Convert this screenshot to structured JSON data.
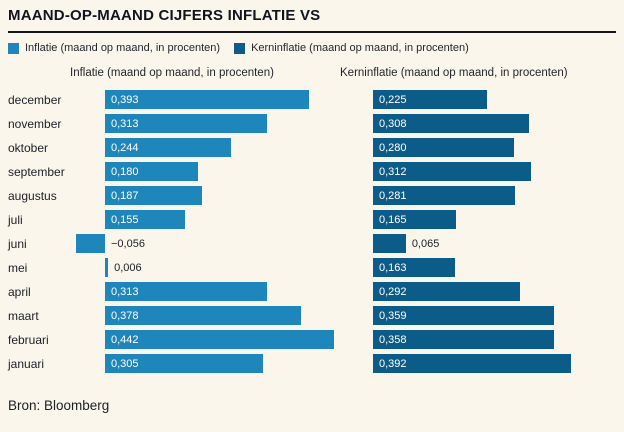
{
  "title": "MAAND-OP-MAAND CIJFERS INFLATIE VS",
  "source": "Bron: Bloomberg",
  "legend": [
    {
      "label": "Inflatie (maand op maand, in procenten)",
      "color": "#1e86ba"
    },
    {
      "label": "Kerninflatie (maand op maand, in procenten)",
      "color": "#0b5c89"
    }
  ],
  "chart_data": {
    "type": "bar",
    "orientation": "horizontal",
    "title": "MAAND-OP-MAAND CIJFERS INFLATIE VS",
    "column_headers": [
      "Inflatie (maand op maand, in procenten)",
      "Kerninflatie (maand op maand, in procenten)"
    ],
    "categories": [
      "december",
      "november",
      "oktober",
      "september",
      "augustus",
      "juli",
      "juni",
      "mei",
      "april",
      "maart",
      "februari",
      "januari"
    ],
    "series": [
      {
        "name": "Inflatie (maand op maand, in procenten)",
        "color": "#1e86ba",
        "values": [
          0.393,
          0.313,
          0.244,
          0.18,
          0.187,
          0.155,
          -0.056,
          0.006,
          0.313,
          0.378,
          0.442,
          0.305
        ],
        "labels": [
          "0,393",
          "0,313",
          "0,244",
          "0,180",
          "0,187",
          "0,155",
          "−0,056",
          "0,006",
          "0,313",
          "0,378",
          "0,442",
          "0,305"
        ]
      },
      {
        "name": "Kerninflatie (maand op maand, in procenten)",
        "color": "#0b5c89",
        "values": [
          0.225,
          0.308,
          0.28,
          0.312,
          0.281,
          0.165,
          0.065,
          0.163,
          0.292,
          0.359,
          0.358,
          0.392
        ],
        "labels": [
          "0,225",
          "0,308",
          "0,280",
          "0,312",
          "0,281",
          "0,165",
          "0,065",
          "0,163",
          "0,292",
          "0,359",
          "0,358",
          "0,392"
        ]
      }
    ],
    "xlim": [
      -0.07,
      0.46
    ],
    "grid": false,
    "legend_position": "top",
    "value_format": "comma-decimal",
    "source": "Bron: Bloomberg"
  }
}
